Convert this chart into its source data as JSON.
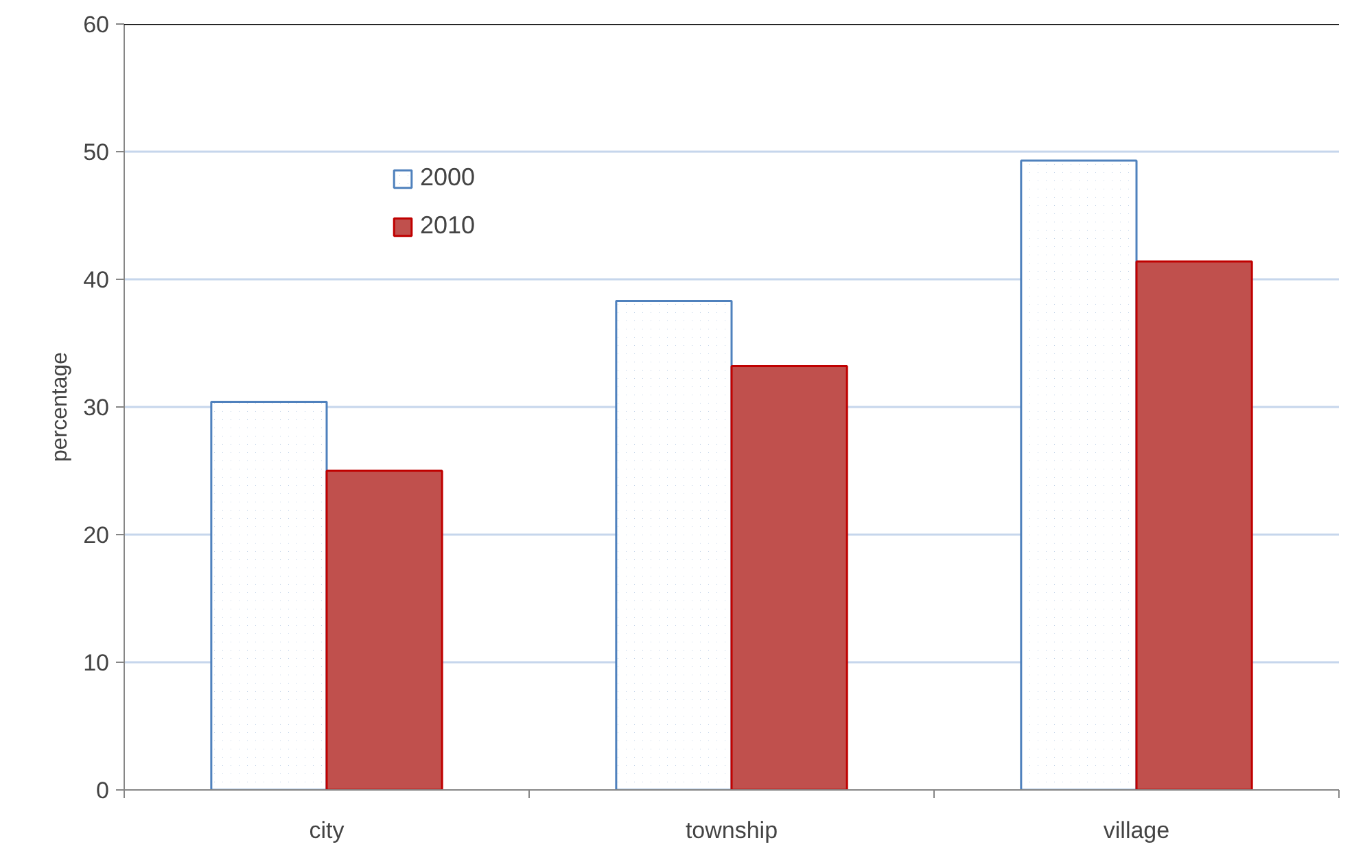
{
  "chart_data": {
    "type": "bar",
    "ylabel": "percentage",
    "categories": [
      "city",
      "township",
      "village"
    ],
    "series": [
      {
        "name": "2000",
        "color": "#4f81bd",
        "values": [
          30.4,
          38.3,
          49.3
        ]
      },
      {
        "name": "2010",
        "color": "#c0504d",
        "values": [
          25.0,
          33.2,
          41.4
        ]
      }
    ],
    "ylim": [
      0,
      60
    ],
    "yticks": [
      0,
      10,
      20,
      30,
      40,
      50,
      60
    ],
    "grid": "y",
    "legend": "top left"
  }
}
